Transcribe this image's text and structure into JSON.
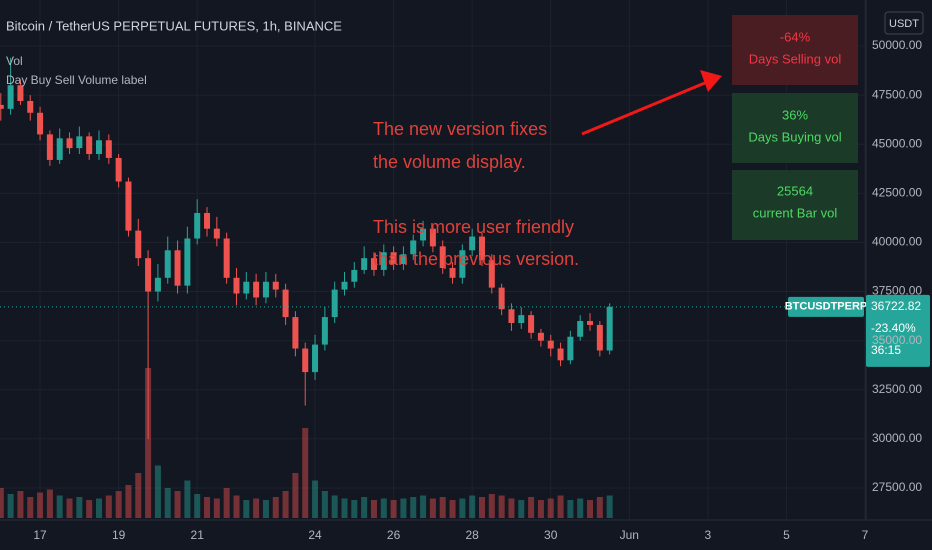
{
  "chart_data": {
    "type": "candlestick",
    "title": "Bitcoin / TetherUS PERPETUAL FUTURES, 1h, BINANCE",
    "indicators": [
      "Vol",
      "Day Buy Sell Volume label"
    ],
    "annotation": [
      "The new version fixes",
      "the volume display.",
      "",
      "This is more user friendly",
      "than the previous version."
    ],
    "info_table": [
      {
        "value": "-64%",
        "label": "Days Selling vol"
      },
      {
        "value": "36%",
        "label": "Days Buying vol"
      },
      {
        "value": "25564",
        "label": "current Bar vol"
      }
    ],
    "currency": "USDT",
    "symbol": "BTCUSDTPERP",
    "last_price": 36722.82,
    "change": "-23.40%",
    "countdown": "36:15",
    "up_color": "#26a69a",
    "down_color": "#ef5350",
    "grid": true,
    "xlim": [
      15.98,
      38.0
    ],
    "xticks": [
      17,
      19,
      21,
      24,
      26,
      28,
      30,
      {
        "value": 32,
        "label": "Jun"
      },
      {
        "value": 34,
        "label": "3"
      },
      {
        "value": 36,
        "label": "5"
      },
      {
        "value": 38,
        "label": "7"
      }
    ],
    "ylim": [
      25770,
      52340
    ],
    "yticks": [
      {
        "value": 27500,
        "label": "27500.00"
      },
      {
        "value": 30000,
        "label": "30000.00"
      },
      {
        "value": 32500,
        "label": "32500.00"
      },
      {
        "value": 35000,
        "label": "35000.00"
      },
      {
        "value": 37500,
        "label": "37500.00"
      },
      {
        "value": 40000,
        "label": "40000.00"
      },
      {
        "value": 42500,
        "label": "42500.00"
      },
      {
        "value": 45000,
        "label": "45000.00"
      },
      {
        "value": 47500,
        "label": "47500.00"
      },
      {
        "value": 50000,
        "label": "50000.00"
      }
    ],
    "x": [
      16.0,
      16.25,
      16.5,
      16.75,
      17.0,
      17.25,
      17.5,
      17.75,
      18.0,
      18.25,
      18.5,
      18.75,
      19.0,
      19.25,
      19.5,
      19.75,
      20.0,
      20.25,
      20.5,
      20.75,
      21.0,
      21.25,
      21.5,
      21.75,
      22.0,
      22.25,
      22.5,
      22.75,
      23.0,
      23.25,
      23.5,
      23.75,
      24.0,
      24.25,
      24.5,
      24.75,
      25.0,
      25.25,
      25.5,
      25.75,
      26.0,
      26.25,
      26.5,
      26.75,
      27.0,
      27.25,
      27.5,
      27.75,
      28.0,
      28.25,
      28.5,
      28.75,
      29.0,
      29.25,
      29.5,
      29.75,
      30.0,
      30.25,
      30.5,
      30.75,
      31.0,
      31.25,
      31.5
    ],
    "open": [
      47000,
      46800,
      48000,
      47200,
      46600,
      45500,
      44200,
      45300,
      44800,
      45400,
      44500,
      45200,
      44300,
      43100,
      40600,
      39200,
      37500,
      38200,
      39600,
      37800,
      40200,
      41500,
      40700,
      40200,
      38200,
      37400,
      38000,
      37200,
      38000,
      37600,
      36200,
      34600,
      33400,
      34800,
      36200,
      37600,
      38000,
      38600,
      39200,
      38600,
      39500,
      38900,
      39400,
      40100,
      40700,
      39800,
      38700,
      38200,
      39600,
      40300,
      39100,
      37700,
      36600,
      35900,
      36300,
      35400,
      35000,
      34600,
      34000,
      35200,
      36000,
      35800,
      34500
    ],
    "high": [
      47600,
      49400,
      48300,
      47500,
      46900,
      45700,
      45800,
      45600,
      45900,
      45600,
      45700,
      45500,
      44500,
      43300,
      41200,
      39600,
      38900,
      40300,
      40100,
      40800,
      42200,
      41800,
      41300,
      40500,
      38700,
      38500,
      38400,
      38500,
      38400,
      37900,
      36500,
      34900,
      35300,
      36700,
      38000,
      38500,
      39000,
      39800,
      39500,
      39900,
      39800,
      39800,
      40400,
      41100,
      40900,
      40100,
      39000,
      39900,
      40700,
      40500,
      39400,
      37900,
      36900,
      36700,
      36500,
      35600,
      35300,
      34900,
      35500,
      36300,
      36400,
      36000,
      36900
    ],
    "low": [
      46200,
      46500,
      47000,
      46200,
      45200,
      43900,
      44000,
      44500,
      44500,
      44200,
      44200,
      44000,
      42800,
      40300,
      38800,
      30000,
      37000,
      37900,
      37400,
      37400,
      39900,
      40300,
      39800,
      37900,
      36800,
      37100,
      36800,
      36900,
      37200,
      35800,
      34200,
      31700,
      33000,
      34500,
      35900,
      37300,
      37700,
      38400,
      38300,
      38300,
      38600,
      38600,
      39100,
      39800,
      39500,
      38400,
      37900,
      37900,
      39300,
      38800,
      37400,
      36300,
      35500,
      35600,
      35100,
      34700,
      34200,
      33700,
      33800,
      35000,
      35500,
      34200,
      34300
    ],
    "close": [
      46800,
      48000,
      47200,
      46600,
      45500,
      44200,
      45300,
      44800,
      45400,
      44500,
      45200,
      44300,
      43100,
      40600,
      39200,
      37500,
      38200,
      39600,
      37800,
      40200,
      41500,
      40700,
      40200,
      38200,
      37400,
      38000,
      37200,
      38000,
      37600,
      36200,
      34600,
      33400,
      34800,
      36200,
      37600,
      38000,
      38600,
      39200,
      38600,
      39500,
      38900,
      39400,
      40100,
      40700,
      39800,
      38700,
      38200,
      39600,
      40300,
      39100,
      37700,
      36600,
      35900,
      36300,
      35400,
      35000,
      34600,
      34000,
      35200,
      36000,
      35800,
      34500,
      36722.82
    ],
    "volume": [
      20,
      16,
      18,
      14,
      17,
      19,
      15,
      13,
      14,
      12,
      13,
      15,
      18,
      22,
      30,
      100,
      35,
      20,
      18,
      25,
      16,
      14,
      13,
      20,
      15,
      12,
      13,
      12,
      14,
      18,
      30,
      60,
      25,
      18,
      15,
      13,
      12,
      14,
      12,
      13,
      12,
      13,
      14,
      15,
      13,
      14,
      12,
      13,
      15,
      14,
      16,
      15,
      13,
      12,
      14,
      12,
      13,
      15,
      12,
      13,
      12,
      14,
      15
    ],
    "volume_lim": [
      0,
      100
    ]
  }
}
